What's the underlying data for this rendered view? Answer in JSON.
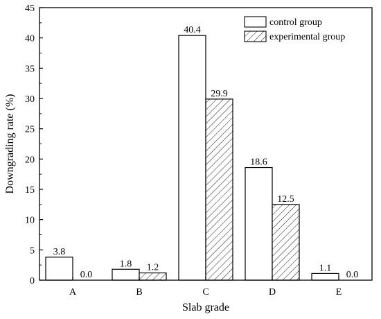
{
  "chart_data": {
    "type": "bar",
    "categories": [
      "A",
      "B",
      "C",
      "D",
      "E"
    ],
    "series": [
      {
        "name": "control group",
        "values": [
          3.8,
          1.8,
          40.4,
          18.6,
          1.1
        ],
        "labels": [
          "3.8",
          "1.8",
          "40.4",
          "18.6",
          "1.1"
        ],
        "fill": "#ffffff",
        "pattern": "none"
      },
      {
        "name": "experimental group",
        "values": [
          0.0,
          1.2,
          29.9,
          12.5,
          0.0
        ],
        "labels": [
          "0.0",
          "1.2",
          "29.9",
          "12.5",
          "0.0"
        ],
        "fill": "#ffffff",
        "pattern": "diagonal-hatch"
      }
    ],
    "xlabel": "Slab grade",
    "ylabel": "Downgrading rate (%)",
    "ylim": [
      0,
      45
    ],
    "yticks": [
      0,
      5,
      10,
      15,
      20,
      25,
      30,
      35,
      40,
      45
    ],
    "ytick_labels": [
      "0",
      "5",
      "10",
      "15",
      "20",
      "25",
      "30",
      "35",
      "40",
      "45"
    ],
    "grid": false,
    "legend_position": "top-right",
    "colors": {
      "stroke": "#000000",
      "background": "#ffffff"
    }
  }
}
